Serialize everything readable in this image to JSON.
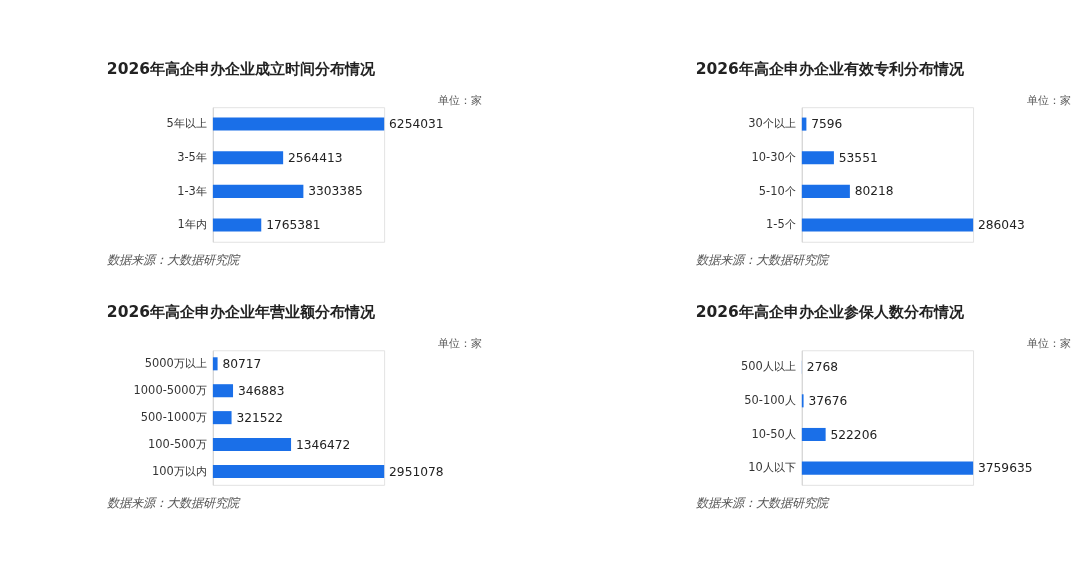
{
  "chart_data": [
    {
      "type": "bar",
      "orientation": "horizontal",
      "title": "2026年高企申办企业成立时间分布情况",
      "categories": [
        "5年以上",
        "3-5年",
        "1-3年",
        "1年内"
      ],
      "values": [
        6254031,
        2564413,
        3303385,
        1765381
      ],
      "color": "#1a6fe8",
      "data_labels": true,
      "annotations": [
        "单位：家",
        "数据来源：大数据研究院"
      ]
    },
    {
      "type": "bar",
      "orientation": "horizontal",
      "title": "2026年高企申办企业有效专利分布情况",
      "categories": [
        "30个以上",
        "10-30个",
        "5-10个",
        "1-5个"
      ],
      "values": [
        7596,
        53551,
        80218,
        286043
      ],
      "color": "#1a6fe8",
      "data_labels": true,
      "annotations": [
        "单位：家",
        "数据来源：大数据研究院"
      ]
    },
    {
      "type": "bar",
      "orientation": "horizontal",
      "title": "2026年高企申办企业年营业额分布情况",
      "categories": [
        "5000万以上",
        "1000-5000万",
        "500-1000万",
        "100-500万",
        "100万以内"
      ],
      "values": [
        80717,
        346883,
        321522,
        1346472,
        2951078
      ],
      "color": "#1a6fe8",
      "data_labels": true,
      "annotations": [
        "单位：家",
        "数据来源：大数据研究院"
      ]
    },
    {
      "type": "bar",
      "orientation": "horizontal",
      "title": "2026年高企申办企业参保人数分布情况",
      "categories": [
        "500人以上",
        "50-100人",
        "10-50人",
        "10人以下"
      ],
      "values": [
        2768,
        37676,
        522206,
        3759635
      ],
      "color": "#1a6fe8",
      "data_labels": true,
      "annotations": [
        "单位：家",
        "数据来源：大数据研究院"
      ]
    }
  ]
}
